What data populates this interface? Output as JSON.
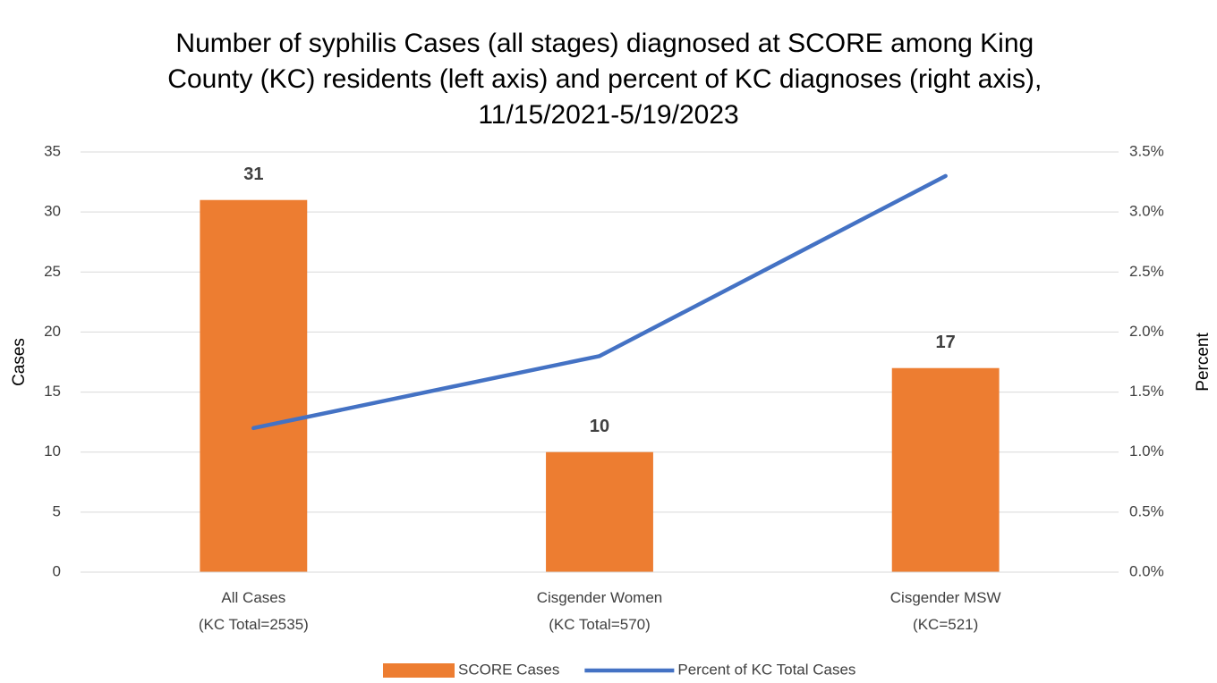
{
  "chart_data": {
    "type": "bar",
    "title": [
      "Number of syphilis Cases (all stages) diagnosed at SCORE among King",
      "County (KC) residents (left axis) and percent of KC diagnoses (right axis),",
      "11/15/2021-5/19/2023"
    ],
    "categories": [
      [
        "All Cases",
        "(KC Total=2535)"
      ],
      [
        "Cisgender Women",
        "(KC Total=570)"
      ],
      [
        "Cisgender MSW",
        "(KC=521)"
      ]
    ],
    "series": [
      {
        "name": "SCORE Cases",
        "type": "bar",
        "color": "#ed7d31",
        "values": [
          31,
          10,
          17
        ]
      },
      {
        "name": "Percent of KC Total Cases",
        "type": "line",
        "color": "#4472c4",
        "values": [
          1.2,
          1.8,
          3.3
        ],
        "axis": "y2"
      }
    ],
    "y_label": "Cases",
    "y2_label": "Percent",
    "ylim": [
      0,
      35
    ],
    "yticks": [
      0,
      5,
      10,
      15,
      20,
      25,
      30,
      35
    ],
    "y2lim": [
      0,
      3.5
    ],
    "y2ticks": [
      {
        "value": 0,
        "label": "0.0%"
      },
      {
        "value": 0.5,
        "label": "0.5%"
      },
      {
        "value": 1,
        "label": "1.0%"
      },
      {
        "value": 1.5,
        "label": "1.5%"
      },
      {
        "value": 2,
        "label": "2.0%"
      },
      {
        "value": 2.5,
        "label": "2.5%"
      },
      {
        "value": 3,
        "label": "3.0%"
      },
      {
        "value": 3.5,
        "label": "3.5%"
      }
    ],
    "grid": true,
    "legend": "bottom"
  }
}
